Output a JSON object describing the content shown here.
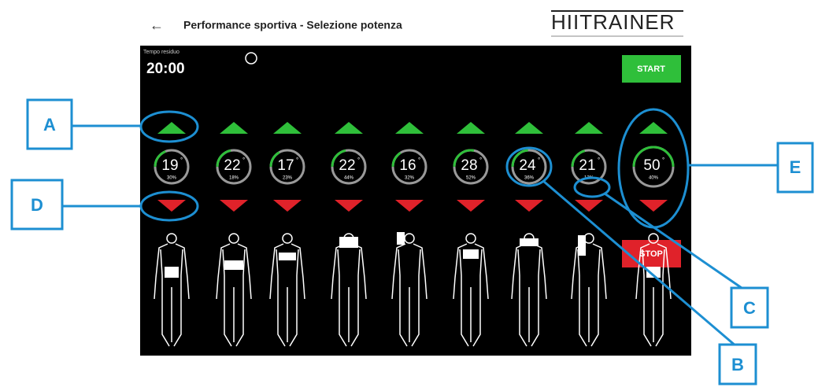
{
  "header": {
    "title": "Performance sportiva - Selezione potenza",
    "logo": "HIITRAINER"
  },
  "timer": {
    "label": "Tempo residuo",
    "value": "20:00"
  },
  "buttons": {
    "start": "START",
    "stop": "STOP"
  },
  "unit": "°",
  "channels": [
    {
      "value": 19,
      "percent": "30%"
    },
    {
      "value": 22,
      "percent": "18%"
    },
    {
      "value": 17,
      "percent": "23%"
    },
    {
      "value": 22,
      "percent": "44%"
    },
    {
      "value": 16,
      "percent": "32%"
    },
    {
      "value": 28,
      "percent": "52%"
    },
    {
      "value": 24,
      "percent": "36%"
    },
    {
      "value": 21,
      "percent": "12%"
    },
    {
      "value": 50,
      "percent": "40%"
    }
  ],
  "annotations": {
    "a": "A",
    "b": "B",
    "c": "C",
    "d": "D",
    "e": "E"
  }
}
